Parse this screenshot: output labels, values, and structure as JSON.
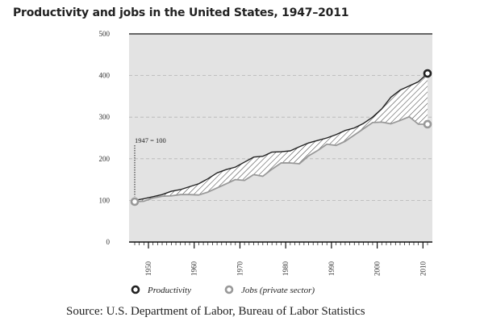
{
  "title": "Productivity and jobs in the United States, 1947–2011",
  "source": "Source: U.S. Department of Labor, Bureau of Labor Statistics",
  "chart_data": {
    "type": "line",
    "title": "Productivity and jobs in the United States, 1947–2011",
    "xlabel": "",
    "ylabel": "",
    "xlim": [
      1947,
      2011
    ],
    "ylim": [
      0,
      500
    ],
    "yticks": [
      0,
      100,
      200,
      300,
      400,
      500
    ],
    "xticks": [
      1950,
      1960,
      1970,
      1980,
      1990,
      2000,
      2010
    ],
    "grid": true,
    "legend_position": "bottom",
    "annotation": "1947 = 100",
    "series": [
      {
        "name": "Productivity",
        "color": "#222222",
        "marker_fill": "#222222",
        "x": [
          1947,
          1949,
          1951,
          1953,
          1955,
          1957,
          1959,
          1961,
          1963,
          1965,
          1967,
          1969,
          1971,
          1973,
          1975,
          1977,
          1979,
          1981,
          1983,
          1985,
          1987,
          1989,
          1991,
          1993,
          1995,
          1997,
          1999,
          2001,
          2003,
          2005,
          2007,
          2009,
          2011
        ],
        "values": [
          100,
          104,
          109,
          114,
          122,
          126,
          133,
          140,
          152,
          166,
          174,
          180,
          192,
          204,
          206,
          216,
          217,
          219,
          229,
          238,
          244,
          250,
          258,
          268,
          274,
          285,
          300,
          320,
          348,
          365,
          375,
          385,
          405
        ]
      },
      {
        "name": "Jobs (private sector)",
        "color": "#999999",
        "marker_fill": "#999999",
        "x": [
          1947,
          1949,
          1951,
          1953,
          1955,
          1957,
          1959,
          1961,
          1963,
          1965,
          1967,
          1969,
          1971,
          1973,
          1975,
          1977,
          1979,
          1981,
          1983,
          1985,
          1987,
          1989,
          1991,
          1993,
          1995,
          1997,
          1999,
          2001,
          2003,
          2005,
          2007,
          2009,
          2011
        ],
        "values": [
          97,
          98,
          106,
          110,
          111,
          114,
          114,
          113,
          120,
          130,
          140,
          150,
          148,
          162,
          158,
          175,
          190,
          190,
          188,
          207,
          220,
          235,
          232,
          242,
          257,
          272,
          287,
          288,
          284,
          292,
          301,
          283,
          283
        ]
      }
    ]
  }
}
